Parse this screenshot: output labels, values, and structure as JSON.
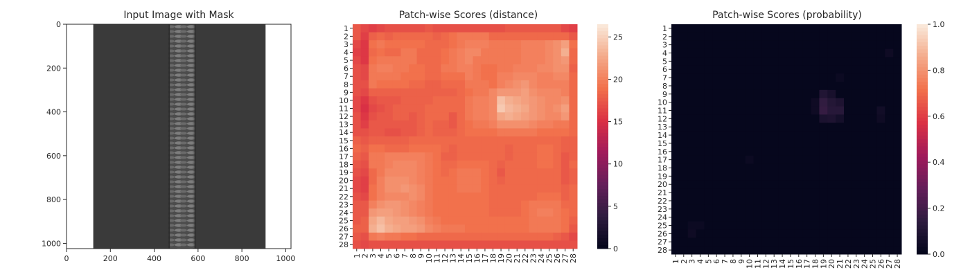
{
  "colors": {
    "frame": "#262626",
    "background": "#ffffff",
    "fabric": "#3a3a3a",
    "zipper_teeth": "#7d7d7d",
    "rocket_colormap": [
      "#03051a",
      "#2e1c3f",
      "#651e5a",
      "#a11a5b",
      "#db3144",
      "#f2704b",
      "#f4aa8a",
      "#faebdd"
    ]
  },
  "chart_data": [
    {
      "type": "image",
      "title": "Input Image with Mask",
      "xlim": [
        0,
        1024
      ],
      "ylim": [
        1024,
        0
      ],
      "x_ticks": [
        0,
        200,
        400,
        600,
        800,
        1000
      ],
      "y_ticks": [
        0,
        200,
        400,
        600,
        800,
        1000
      ],
      "x_tick_labels": [
        "0",
        "200",
        "400",
        "600",
        "800",
        "1000"
      ],
      "y_tick_labels": [
        "0",
        "200",
        "400",
        "600",
        "800",
        "1000"
      ],
      "fabric_extent_x": [
        122,
        908
      ],
      "zipper_extent_x": [
        465,
        590
      ]
    },
    {
      "type": "heatmap",
      "title": "Patch-wise Scores (distance)",
      "rows": 28,
      "cols": 28,
      "x_tick_labels": [
        "1",
        "2",
        "3",
        "4",
        "5",
        "6",
        "7",
        "8",
        "9",
        "10",
        "11",
        "12",
        "13",
        "14",
        "15",
        "16",
        "17",
        "18",
        "19",
        "20",
        "21",
        "22",
        "23",
        "24",
        "25",
        "26",
        "27",
        "28"
      ],
      "y_tick_labels": [
        "1",
        "2",
        "3",
        "4",
        "5",
        "6",
        "7",
        "8",
        "9",
        "10",
        "11",
        "12",
        "13",
        "14",
        "15",
        "16",
        "17",
        "18",
        "19",
        "20",
        "21",
        "22",
        "23",
        "24",
        "25",
        "26",
        "27",
        "28"
      ],
      "colorbar": {
        "min": 0,
        "max": 26.5,
        "ticks": [
          0,
          5,
          10,
          15,
          20,
          25
        ],
        "tick_labels": [
          "0",
          "5",
          "10",
          "15",
          "20",
          "25"
        ]
      },
      "values": [
        [
          17.5,
          16.5,
          16.0,
          16.5,
          17.0,
          17.0,
          17.0,
          17.0,
          17.0,
          17.5,
          17.0,
          17.0,
          17.0,
          17.0,
          17.0,
          17.0,
          17.0,
          17.0,
          17.0,
          17.5,
          17.5,
          17.5,
          17.5,
          17.5,
          17.5,
          17.5,
          16.5,
          16.0
        ],
        [
          17.5,
          16.0,
          18.0,
          18.5,
          18.0,
          18.5,
          18.5,
          18.5,
          18.5,
          18.5,
          18.0,
          18.5,
          19.0,
          19.5,
          19.5,
          19.5,
          19.5,
          18.5,
          18.5,
          18.5,
          18.5,
          18.5,
          18.5,
          18.5,
          18.5,
          18.5,
          18.5,
          17.5
        ],
        [
          16.5,
          15.5,
          19.0,
          19.5,
          19.0,
          19.0,
          19.0,
          19.0,
          19.0,
          18.5,
          18.5,
          18.5,
          19.0,
          19.5,
          20.0,
          20.0,
          20.0,
          19.5,
          19.5,
          19.5,
          19.5,
          20.0,
          20.0,
          20.0,
          20.5,
          21.0,
          22.0,
          19.0
        ],
        [
          16.0,
          15.5,
          18.5,
          19.0,
          18.5,
          18.5,
          19.5,
          19.5,
          18.5,
          18.5,
          18.5,
          19.0,
          19.5,
          20.0,
          20.5,
          20.5,
          19.5,
          19.5,
          19.5,
          19.5,
          19.5,
          20.0,
          20.0,
          20.0,
          20.5,
          21.0,
          23.0,
          18.5
        ],
        [
          16.5,
          15.5,
          19.0,
          19.5,
          19.5,
          19.5,
          19.5,
          19.5,
          18.5,
          18.5,
          18.5,
          19.0,
          19.5,
          20.0,
          20.5,
          19.5,
          19.5,
          19.5,
          19.5,
          19.5,
          19.5,
          20.0,
          20.0,
          20.0,
          20.5,
          21.0,
          21.5,
          18.5
        ],
        [
          17.0,
          16.5,
          19.5,
          20.0,
          20.0,
          19.5,
          19.5,
          19.0,
          19.0,
          18.5,
          18.5,
          19.5,
          19.5,
          20.0,
          20.0,
          19.5,
          19.0,
          19.0,
          19.5,
          19.5,
          20.0,
          20.0,
          20.0,
          20.5,
          20.5,
          21.0,
          21.0,
          18.0
        ],
        [
          17.0,
          16.5,
          19.5,
          19.5,
          19.5,
          19.5,
          19.0,
          19.0,
          19.0,
          18.5,
          18.5,
          19.0,
          19.0,
          19.0,
          20.0,
          19.5,
          19.0,
          19.0,
          20.0,
          20.0,
          20.5,
          20.5,
          20.5,
          20.0,
          20.0,
          20.5,
          20.5,
          18.5
        ],
        [
          17.0,
          17.0,
          19.5,
          19.0,
          19.0,
          19.0,
          19.0,
          18.5,
          18.5,
          18.0,
          18.0,
          18.5,
          18.5,
          18.5,
          19.5,
          19.5,
          19.5,
          19.0,
          20.0,
          20.5,
          21.0,
          21.5,
          20.5,
          20.0,
          20.0,
          20.0,
          20.0,
          18.5
        ],
        [
          17.0,
          16.5,
          18.0,
          18.0,
          18.0,
          18.0,
          18.0,
          18.0,
          18.0,
          18.0,
          18.0,
          18.0,
          18.0,
          18.5,
          19.0,
          19.5,
          19.5,
          20.5,
          21.5,
          21.5,
          21.5,
          22.0,
          21.0,
          20.5,
          20.5,
          20.5,
          20.0,
          18.5
        ],
        [
          16.5,
          15.5,
          17.0,
          17.5,
          17.5,
          17.5,
          18.0,
          18.0,
          18.0,
          18.0,
          18.5,
          18.5,
          18.5,
          18.5,
          19.5,
          20.0,
          20.0,
          20.5,
          24.0,
          23.0,
          22.5,
          22.0,
          21.5,
          21.0,
          20.5,
          20.5,
          21.0,
          18.5
        ],
        [
          16.5,
          15.0,
          16.5,
          17.0,
          17.5,
          18.0,
          18.0,
          18.0,
          18.0,
          18.5,
          18.5,
          18.5,
          18.5,
          18.5,
          19.5,
          20.0,
          20.0,
          20.5,
          24.5,
          23.5,
          23.0,
          22.5,
          21.5,
          21.0,
          20.5,
          21.0,
          22.0,
          18.5
        ],
        [
          17.0,
          15.5,
          17.0,
          17.5,
          17.5,
          18.0,
          18.0,
          17.5,
          18.0,
          18.5,
          18.5,
          18.5,
          17.5,
          18.5,
          19.5,
          20.0,
          20.0,
          20.5,
          22.5,
          23.0,
          22.5,
          22.0,
          21.5,
          21.0,
          20.5,
          20.5,
          21.5,
          18.5
        ],
        [
          17.0,
          16.0,
          17.5,
          17.5,
          17.5,
          17.5,
          17.5,
          17.5,
          18.0,
          18.5,
          18.0,
          18.0,
          17.5,
          18.5,
          19.0,
          19.5,
          19.5,
          20.0,
          21.0,
          21.0,
          21.0,
          21.0,
          20.5,
          20.0,
          20.0,
          19.5,
          19.5,
          18.5
        ],
        [
          17.0,
          17.0,
          17.5,
          17.5,
          17.0,
          17.0,
          17.5,
          17.5,
          18.0,
          18.5,
          18.0,
          18.0,
          18.0,
          18.5,
          19.0,
          19.0,
          19.0,
          19.0,
          19.5,
          19.5,
          19.5,
          19.5,
          19.5,
          19.0,
          19.0,
          19.0,
          19.0,
          18.5
        ],
        [
          18.0,
          17.5,
          18.0,
          18.0,
          18.0,
          18.0,
          18.0,
          18.5,
          18.5,
          18.5,
          18.5,
          18.5,
          18.5,
          18.5,
          18.5,
          18.5,
          18.5,
          18.5,
          18.5,
          18.5,
          18.5,
          18.5,
          18.5,
          18.5,
          18.5,
          18.5,
          18.0,
          18.0
        ],
        [
          18.5,
          18.0,
          19.0,
          19.0,
          18.5,
          18.5,
          18.5,
          19.0,
          19.0,
          19.0,
          19.0,
          18.5,
          18.0,
          18.5,
          18.5,
          18.5,
          18.5,
          18.5,
          18.5,
          18.0,
          18.5,
          18.5,
          18.5,
          19.0,
          19.0,
          18.5,
          18.0,
          18.0
        ],
        [
          18.0,
          17.5,
          19.5,
          19.5,
          20.0,
          20.0,
          20.0,
          20.0,
          20.0,
          19.5,
          19.0,
          18.0,
          18.0,
          18.5,
          18.5,
          18.5,
          18.5,
          18.5,
          18.5,
          18.0,
          18.5,
          18.5,
          18.5,
          19.0,
          19.0,
          18.5,
          17.5,
          18.0
        ],
        [
          17.5,
          17.0,
          19.5,
          19.5,
          20.0,
          20.5,
          20.5,
          20.5,
          20.0,
          19.5,
          19.0,
          18.5,
          18.5,
          19.0,
          19.0,
          19.0,
          19.0,
          18.5,
          18.0,
          18.5,
          18.5,
          18.5,
          18.5,
          19.0,
          19.0,
          18.5,
          17.5,
          18.5
        ],
        [
          17.0,
          16.5,
          18.5,
          19.5,
          20.5,
          20.5,
          20.5,
          20.5,
          20.0,
          19.5,
          19.0,
          18.5,
          19.0,
          19.5,
          19.5,
          19.5,
          19.0,
          18.5,
          17.5,
          18.5,
          18.5,
          18.5,
          18.5,
          18.5,
          18.5,
          18.5,
          17.5,
          18.0
        ],
        [
          16.5,
          16.0,
          18.5,
          20.0,
          21.0,
          21.0,
          21.0,
          20.5,
          20.0,
          19.5,
          19.0,
          19.0,
          19.0,
          19.5,
          19.5,
          19.5,
          19.0,
          18.5,
          18.0,
          18.5,
          18.5,
          18.5,
          18.5,
          18.5,
          18.5,
          18.5,
          17.5,
          18.0
        ],
        [
          16.5,
          16.0,
          19.0,
          20.0,
          21.0,
          21.0,
          21.5,
          21.0,
          20.5,
          19.5,
          19.0,
          19.0,
          19.0,
          19.5,
          19.5,
          19.5,
          19.0,
          18.5,
          18.5,
          18.5,
          18.5,
          18.5,
          18.5,
          18.5,
          18.5,
          18.5,
          18.0,
          18.5
        ],
        [
          17.0,
          16.5,
          19.0,
          20.0,
          20.5,
          20.5,
          20.5,
          21.0,
          20.5,
          19.5,
          19.0,
          19.0,
          19.0,
          19.0,
          19.0,
          19.0,
          19.0,
          18.5,
          18.5,
          18.5,
          18.5,
          18.5,
          18.5,
          19.0,
          19.0,
          19.0,
          18.0,
          18.5
        ],
        [
          17.5,
          17.5,
          20.0,
          21.0,
          21.5,
          21.5,
          21.0,
          20.5,
          20.0,
          19.5,
          19.0,
          19.0,
          19.0,
          19.0,
          19.0,
          19.0,
          19.0,
          18.5,
          18.5,
          18.5,
          18.5,
          19.0,
          19.5,
          19.5,
          19.5,
          19.5,
          18.5,
          18.5
        ],
        [
          17.5,
          17.5,
          21.5,
          22.0,
          22.0,
          21.5,
          21.0,
          20.5,
          20.0,
          19.5,
          19.0,
          19.0,
          19.0,
          19.0,
          19.0,
          19.0,
          19.0,
          18.5,
          18.5,
          18.5,
          18.5,
          19.0,
          19.5,
          20.0,
          20.0,
          19.5,
          19.0,
          18.5
        ],
        [
          17.5,
          18.0,
          22.5,
          23.5,
          22.5,
          22.0,
          22.0,
          21.5,
          21.0,
          20.0,
          19.5,
          19.0,
          19.0,
          19.0,
          19.0,
          19.0,
          19.0,
          19.0,
          19.0,
          19.0,
          19.0,
          19.0,
          19.5,
          19.5,
          19.5,
          19.5,
          19.0,
          18.0
        ],
        [
          18.0,
          18.0,
          23.0,
          24.0,
          23.0,
          22.5,
          22.0,
          22.0,
          21.5,
          20.5,
          20.0,
          19.5,
          19.5,
          19.5,
          19.0,
          19.0,
          19.0,
          19.0,
          19.0,
          19.0,
          19.0,
          19.0,
          19.5,
          19.5,
          19.5,
          19.5,
          19.0,
          17.5
        ],
        [
          17.5,
          17.0,
          19.5,
          20.0,
          19.5,
          19.5,
          19.0,
          19.0,
          18.5,
          18.5,
          18.5,
          18.5,
          18.5,
          18.5,
          18.5,
          18.5,
          18.5,
          18.5,
          18.5,
          18.5,
          18.5,
          18.5,
          18.5,
          18.5,
          18.5,
          18.0,
          17.5,
          16.5
        ],
        [
          17.0,
          16.5,
          17.0,
          17.0,
          17.0,
          17.0,
          17.0,
          17.0,
          17.0,
          17.0,
          17.0,
          17.0,
          17.0,
          17.0,
          17.0,
          17.0,
          17.0,
          17.0,
          17.0,
          17.0,
          17.0,
          17.0,
          17.0,
          17.0,
          17.0,
          17.0,
          17.0,
          17.0
        ]
      ]
    },
    {
      "type": "heatmap",
      "title": "Patch-wise Scores (probability)",
      "rows": 28,
      "cols": 28,
      "x_tick_labels": [
        "1",
        "2",
        "3",
        "4",
        "5",
        "6",
        "7",
        "8",
        "9",
        "10",
        "11",
        "12",
        "13",
        "14",
        "15",
        "16",
        "17",
        "18",
        "19",
        "20",
        "21",
        "22",
        "23",
        "24",
        "25",
        "26",
        "27",
        "28"
      ],
      "y_tick_labels": [
        "1",
        "2",
        "3",
        "4",
        "5",
        "6",
        "7",
        "8",
        "9",
        "10",
        "11",
        "12",
        "13",
        "14",
        "15",
        "16",
        "17",
        "18",
        "19",
        "20",
        "21",
        "22",
        "23",
        "24",
        "25",
        "26",
        "27",
        "28"
      ],
      "colorbar": {
        "min": 0,
        "max": 1,
        "ticks": [
          0,
          0.2,
          0.4,
          0.6,
          0.8,
          1.0
        ],
        "tick_labels": [
          "0.0",
          "0.2",
          "0.4",
          "0.6",
          "0.8",
          "1.0"
        ]
      },
      "baseline": 0.01,
      "hotspots": [
        {
          "row": 9,
          "col": 19,
          "value": 0.1
        },
        {
          "row": 9,
          "col": 20,
          "value": 0.07
        },
        {
          "row": 10,
          "col": 19,
          "value": 0.15
        },
        {
          "row": 10,
          "col": 20,
          "value": 0.11
        },
        {
          "row": 10,
          "col": 21,
          "value": 0.09
        },
        {
          "row": 11,
          "col": 19,
          "value": 0.16
        },
        {
          "row": 11,
          "col": 20,
          "value": 0.12
        },
        {
          "row": 11,
          "col": 21,
          "value": 0.12
        },
        {
          "row": 12,
          "col": 19,
          "value": 0.08
        },
        {
          "row": 12,
          "col": 20,
          "value": 0.09
        },
        {
          "row": 12,
          "col": 21,
          "value": 0.06
        },
        {
          "row": 10,
          "col": 18,
          "value": 0.04
        },
        {
          "row": 11,
          "col": 18,
          "value": 0.04
        },
        {
          "row": 11,
          "col": 26,
          "value": 0.05
        },
        {
          "row": 12,
          "col": 26,
          "value": 0.04
        },
        {
          "row": 4,
          "col": 27,
          "value": 0.04
        },
        {
          "row": 7,
          "col": 21,
          "value": 0.03
        },
        {
          "row": 25,
          "col": 3,
          "value": 0.03
        },
        {
          "row": 26,
          "col": 3,
          "value": 0.04
        },
        {
          "row": 25,
          "col": 4,
          "value": 0.03
        },
        {
          "row": 17,
          "col": 10,
          "value": 0.03
        }
      ]
    }
  ]
}
